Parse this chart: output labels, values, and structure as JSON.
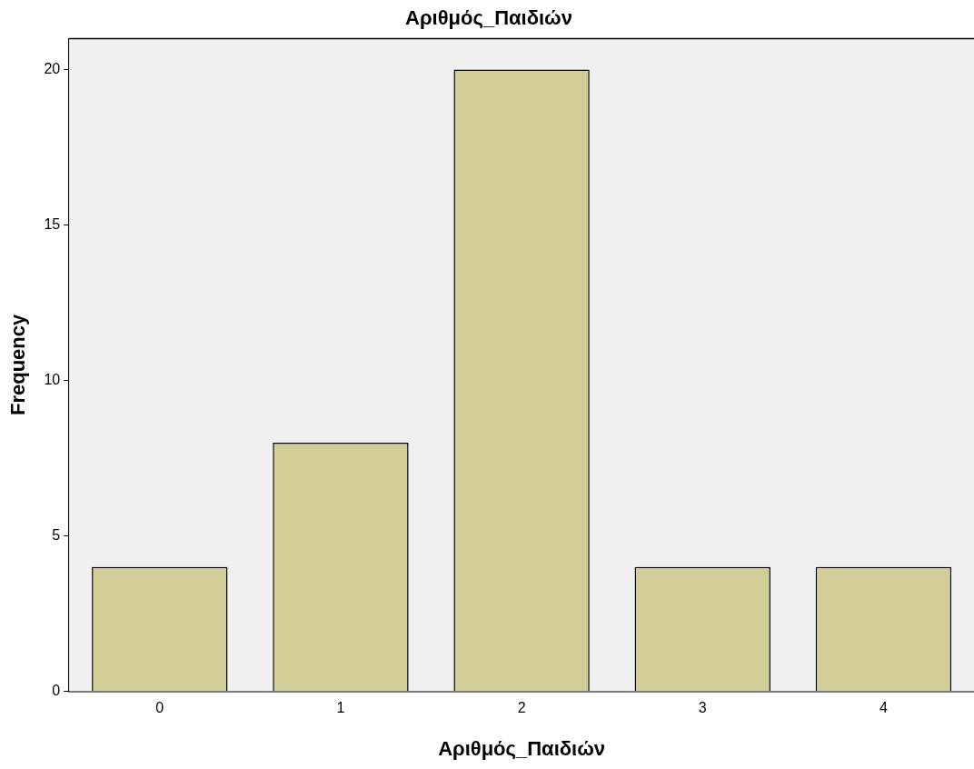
{
  "chart_data": {
    "type": "bar",
    "title": "Αριθμός_Παιδιών",
    "xlabel": "Αριθμός_Παιδιών",
    "ylabel": "Frequency",
    "categories": [
      "0",
      "1",
      "2",
      "3",
      "4"
    ],
    "values": [
      4,
      8,
      20,
      4,
      4
    ],
    "color": "#d3ce98",
    "ylim": [
      0,
      21
    ],
    "yticks": [
      0,
      5,
      10,
      15,
      20
    ],
    "grid": false,
    "legend": false
  }
}
